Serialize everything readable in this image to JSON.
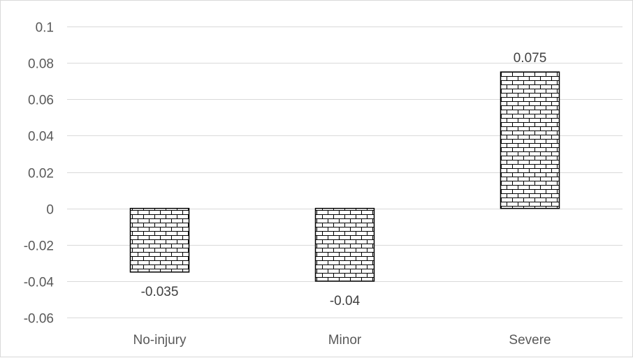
{
  "chart_data": {
    "type": "bar",
    "title": "",
    "xlabel": "",
    "ylabel": "",
    "categories": [
      "No-injury",
      "Minor",
      "Severe"
    ],
    "values": [
      -0.035,
      -0.04,
      0.075
    ],
    "data_labels": [
      "-0.035",
      "-0.04",
      "0.075"
    ],
    "ylim": [
      -0.06,
      0.1
    ],
    "yticks": [
      0.1,
      0.08,
      0.06,
      0.04,
      0.02,
      0,
      -0.02,
      -0.04,
      -0.06
    ],
    "ytick_labels": [
      "0.1",
      "0.08",
      "0.06",
      "0.04",
      "0.02",
      "0",
      "-0.02",
      "-0.04",
      "-0.06"
    ],
    "grid": true,
    "legend": "none",
    "bar_fill": "brick-pattern",
    "colors": {
      "bar_pattern": "#000000",
      "bar_background": "#ffffff",
      "gridline": "#d9d9d9",
      "axis_text": "#595959"
    }
  }
}
